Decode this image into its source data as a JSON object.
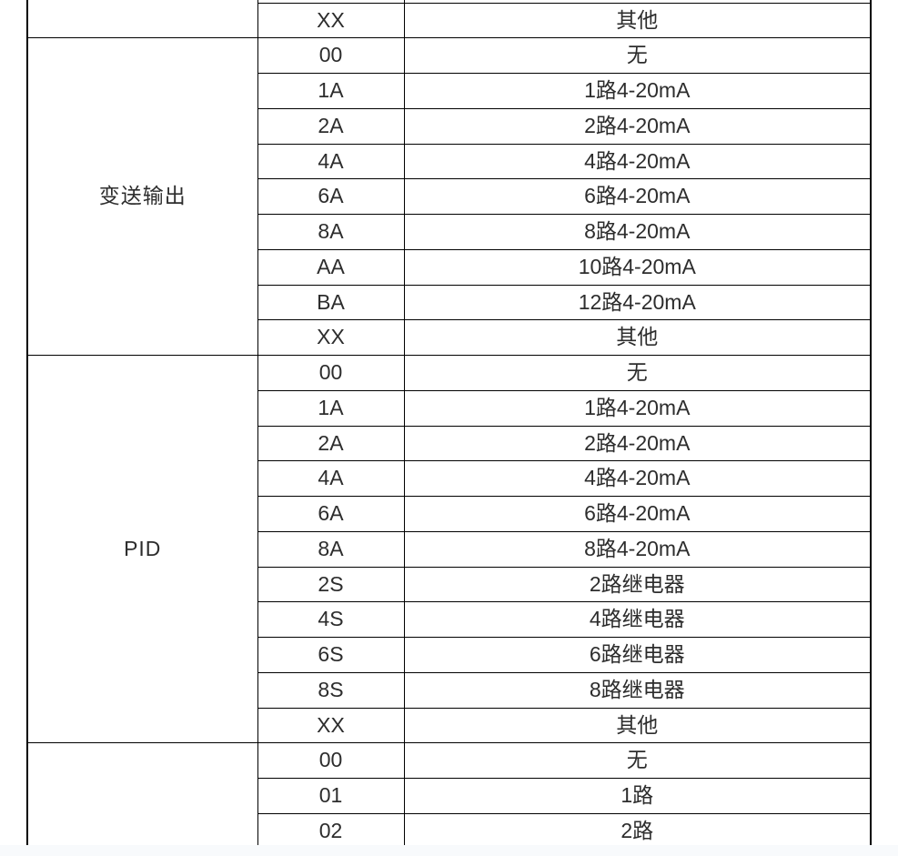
{
  "page": {
    "background": "#ffffff",
    "grid_color": "#000000",
    "text_color": "#2d2d2d",
    "footer_strip_color": "#f8fafc"
  },
  "table": {
    "columns": [
      "group",
      "code",
      "description"
    ],
    "groups": [
      {
        "label": "",
        "rows": [
          {
            "code": "",
            "desc": ""
          },
          {
            "code": "XX",
            "desc": "其他"
          }
        ]
      },
      {
        "label": "变送输出",
        "rows": [
          {
            "code": "00",
            "desc": "无"
          },
          {
            "code": "1A",
            "desc": "1路4-20mA"
          },
          {
            "code": "2A",
            "desc": "2路4-20mA"
          },
          {
            "code": "4A",
            "desc": "4路4-20mA"
          },
          {
            "code": "6A",
            "desc": "6路4-20mA"
          },
          {
            "code": "8A",
            "desc": "8路4-20mA"
          },
          {
            "code": "AA",
            "desc": "10路4-20mA"
          },
          {
            "code": "BA",
            "desc": "12路4-20mA"
          },
          {
            "code": "XX",
            "desc": "其他"
          }
        ]
      },
      {
        "label": "PID",
        "rows": [
          {
            "code": "00",
            "desc": "无"
          },
          {
            "code": "1A",
            "desc": "1路4-20mA"
          },
          {
            "code": "2A",
            "desc": "2路4-20mA"
          },
          {
            "code": "4A",
            "desc": "4路4-20mA"
          },
          {
            "code": "6A",
            "desc": "6路4-20mA"
          },
          {
            "code": "8A",
            "desc": "8路4-20mA"
          },
          {
            "code": "2S",
            "desc": "2路继电器"
          },
          {
            "code": "4S",
            "desc": "4路继电器"
          },
          {
            "code": "6S",
            "desc": "6路继电器"
          },
          {
            "code": "8S",
            "desc": "8路继电器"
          },
          {
            "code": "XX",
            "desc": "其他"
          }
        ]
      },
      {
        "label": "",
        "rows": [
          {
            "code": "00",
            "desc": "无"
          },
          {
            "code": "01",
            "desc": "1路"
          },
          {
            "code": "02",
            "desc": "2路"
          }
        ]
      }
    ]
  }
}
